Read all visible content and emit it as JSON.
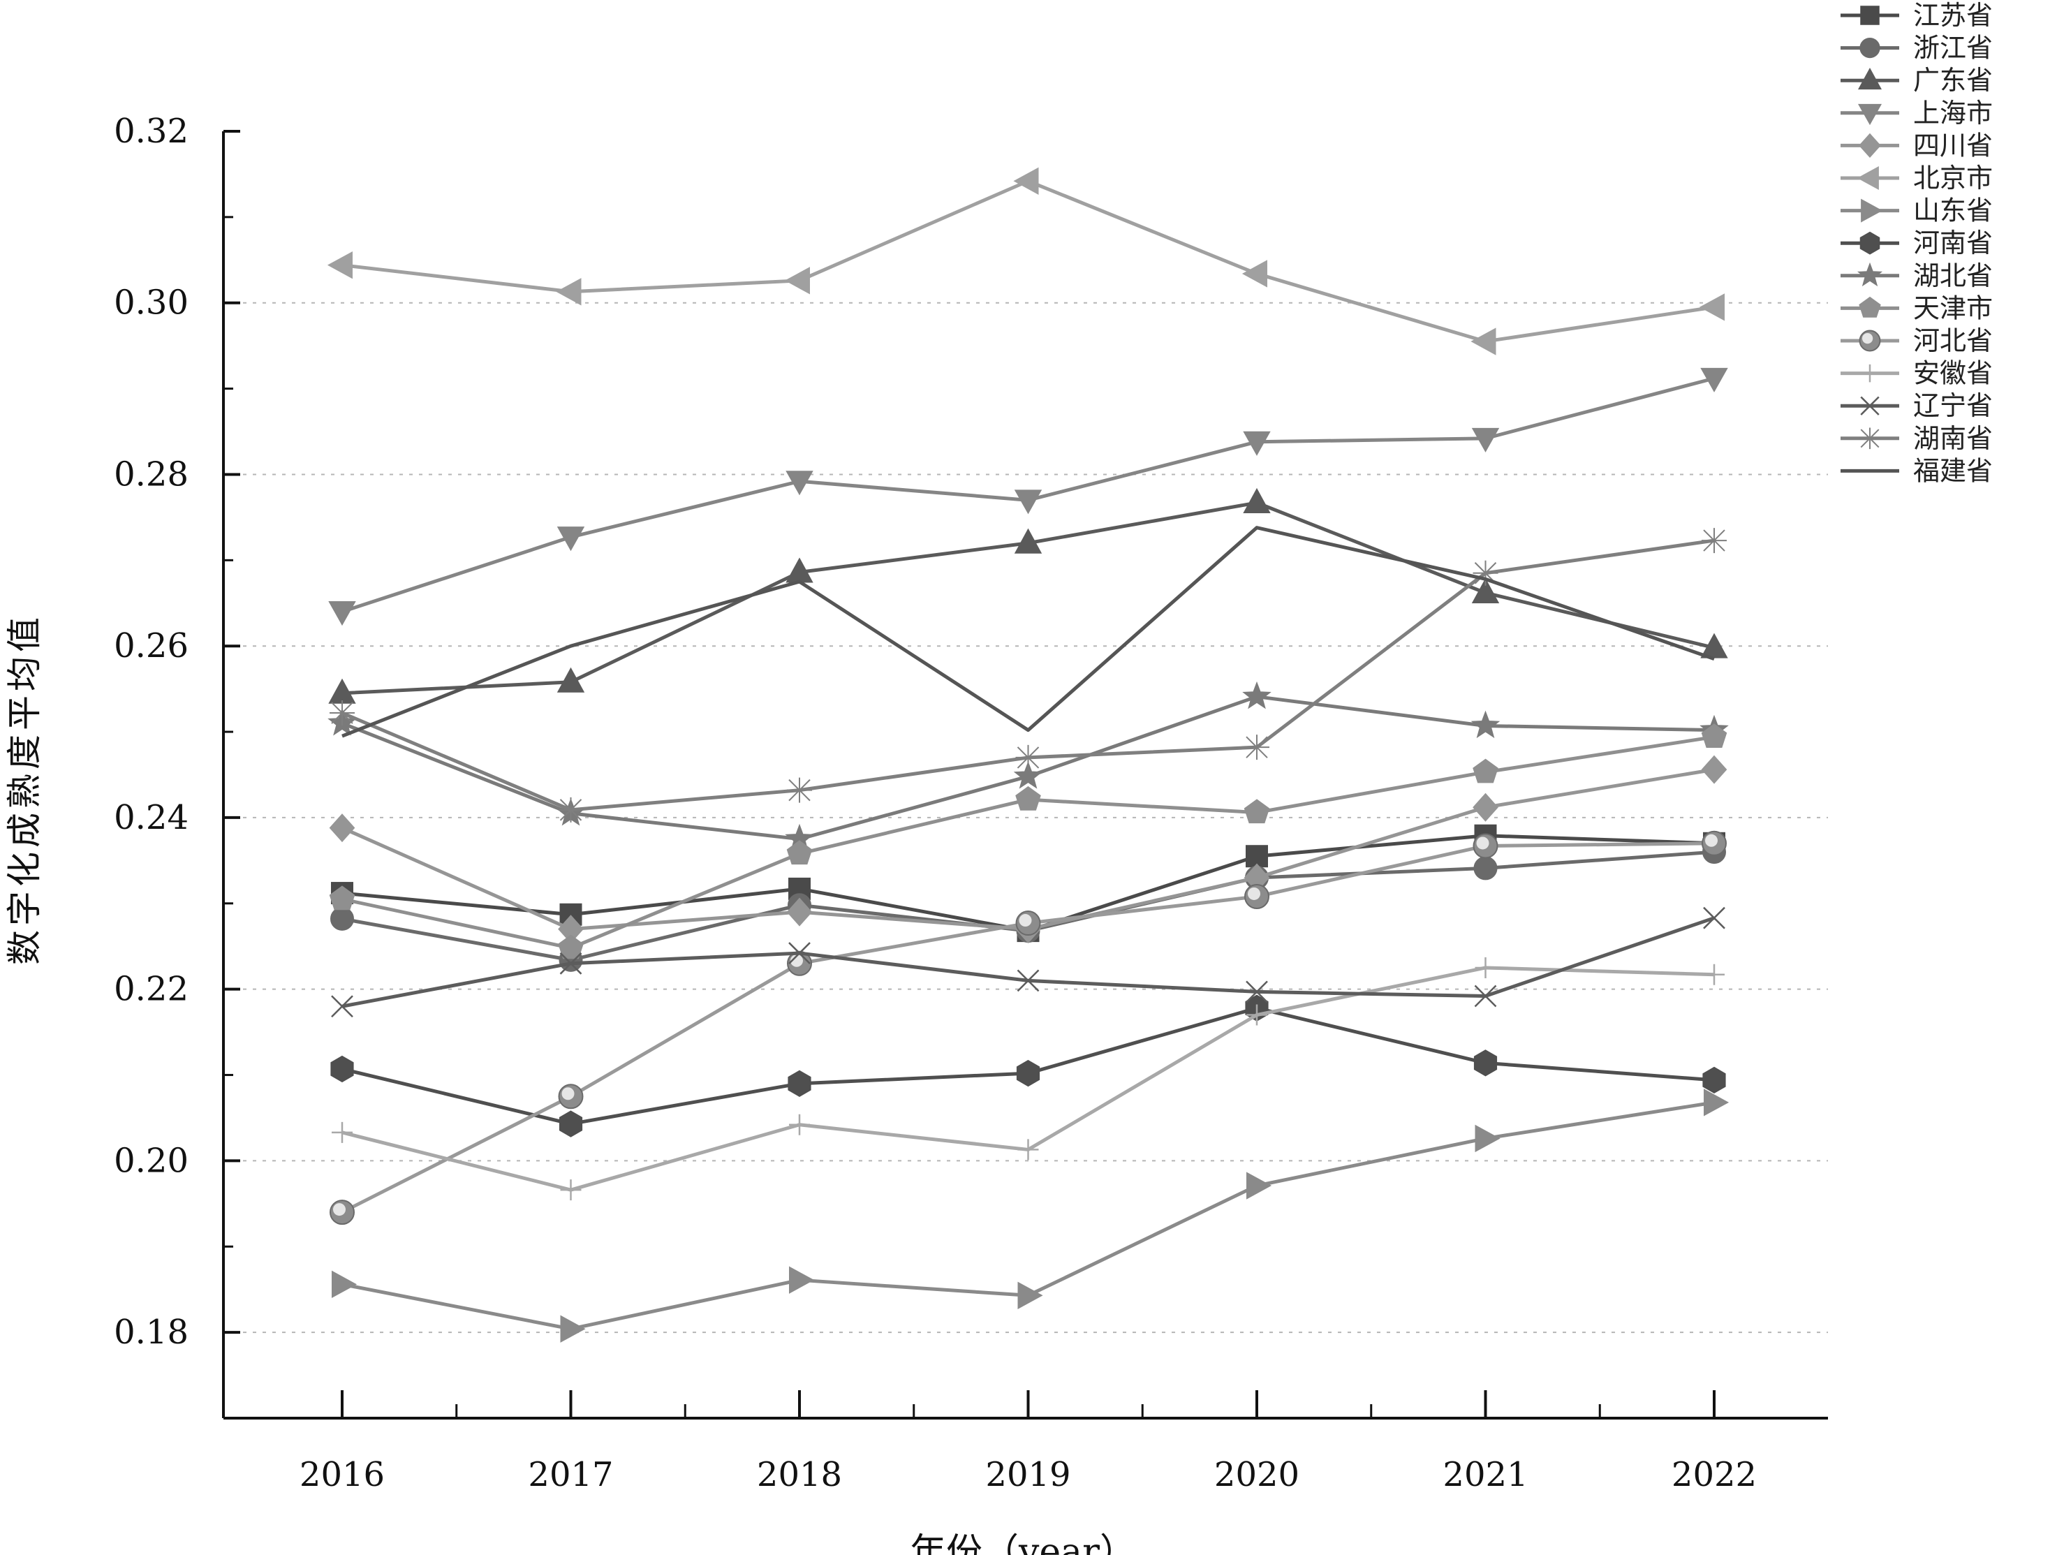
{
  "chart_data": {
    "type": "line",
    "title": "",
    "xlabel": "年份（year）",
    "ylabel": "数字化成熟度平均值",
    "x": [
      "2016",
      "2017",
      "2018",
      "2019",
      "2020",
      "2021",
      "2022"
    ],
    "ylim": [
      0.17,
      0.32
    ],
    "yticks": [
      "0.18",
      "0.20",
      "0.22",
      "0.24",
      "0.26",
      "0.28",
      "0.30",
      "0.32"
    ],
    "grid": "horizontal dotted",
    "legend_position": "top-right",
    "series": [
      {
        "name": "江苏省",
        "marker": "square",
        "color": "#4a4a4a",
        "values": [
          0.2312,
          0.2287,
          0.2317,
          0.2268,
          0.2355,
          0.2379,
          0.237
        ]
      },
      {
        "name": "浙江省",
        "marker": "circle",
        "color": "#6a6a6a",
        "values": [
          0.2282,
          0.2234,
          0.2298,
          0.2268,
          0.233,
          0.2341,
          0.236
        ]
      },
      {
        "name": "广东省",
        "marker": "triangle-up",
        "color": "#5a5a5a",
        "values": [
          0.2545,
          0.2558,
          0.2686,
          0.272,
          0.2767,
          0.2662,
          0.2598
        ]
      },
      {
        "name": "上海市",
        "marker": "triangle-down",
        "color": "#858585",
        "values": [
          0.264,
          0.2727,
          0.2792,
          0.277,
          0.2838,
          0.2842,
          0.2912
        ]
      },
      {
        "name": "四川省",
        "marker": "diamond",
        "color": "#959595",
        "values": [
          0.2388,
          0.227,
          0.229,
          0.227,
          0.233,
          0.2412,
          0.2456
        ]
      },
      {
        "name": "北京市",
        "marker": "triangle-left",
        "color": "#a0a0a0",
        "values": [
          0.3044,
          0.3013,
          0.3026,
          0.3142,
          0.3034,
          0.2955,
          0.2995
        ]
      },
      {
        "name": "山东省",
        "marker": "triangle-right",
        "color": "#8a8a8a",
        "values": [
          0.1856,
          0.1804,
          0.1861,
          0.1843,
          0.1971,
          0.2026,
          0.2068
        ]
      },
      {
        "name": "河南省",
        "marker": "hexagon",
        "color": "#4f4f4f",
        "values": [
          0.2107,
          0.2043,
          0.209,
          0.2102,
          0.2178,
          0.2114,
          0.2094
        ]
      },
      {
        "name": "湖北省",
        "marker": "star",
        "color": "#7a7a7a",
        "values": [
          0.251,
          0.2405,
          0.2375,
          0.2448,
          0.2541,
          0.2507,
          0.2502
        ]
      },
      {
        "name": "天津市",
        "marker": "pentagon",
        "color": "#8f8f8f",
        "values": [
          0.2305,
          0.2248,
          0.2358,
          0.2421,
          0.2406,
          0.2453,
          0.2494
        ]
      },
      {
        "name": "河北省",
        "marker": "ball",
        "color": "#999999",
        "values": [
          0.194,
          0.2075,
          0.223,
          0.2277,
          0.2308,
          0.2367,
          0.237
        ]
      },
      {
        "name": "安徽省",
        "marker": "plus",
        "color": "#a8a8a8",
        "values": [
          0.2033,
          0.1966,
          0.2042,
          0.2013,
          0.217,
          0.2225,
          0.2217
        ]
      },
      {
        "name": "辽宁省",
        "marker": "x",
        "color": "#5c5c5c",
        "values": [
          0.218,
          0.223,
          0.2242,
          0.221,
          0.2197,
          0.2192,
          0.2283
        ]
      },
      {
        "name": "湖南省",
        "marker": "asterisk",
        "color": "#7f7f7f",
        "values": [
          0.2522,
          0.2409,
          0.2432,
          0.247,
          0.2482,
          0.2685,
          0.2723
        ]
      },
      {
        "name": "福建省",
        "marker": "none",
        "color": "#555555",
        "values": [
          0.2495,
          0.26,
          0.2675,
          0.2502,
          0.2738,
          0.2678,
          0.2585
        ]
      }
    ]
  }
}
